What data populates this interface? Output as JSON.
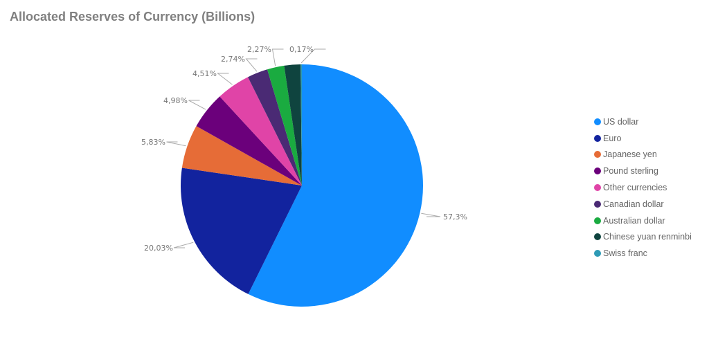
{
  "title": "Allocated Reserves of Currency (Billions)",
  "chart_data": {
    "type": "pie",
    "title": "Allocated Reserves of Currency (Billions)",
    "legend_position": "right",
    "note": "Eight percentage labels are visible for nine slices. Values are assigned by legend order; Chinese yuan renminbi has no visible label.",
    "slices": [
      {
        "label": "US dollar",
        "value": 57.3,
        "display": "57,3%",
        "color": "#118dff"
      },
      {
        "label": "Euro",
        "value": 20.03,
        "display": "20,03%",
        "color": "#12239e"
      },
      {
        "label": "Japanese yen",
        "value": 5.83,
        "display": "5,83%",
        "color": "#e66c37"
      },
      {
        "label": "Pound sterling",
        "value": 4.98,
        "display": "4,98%",
        "color": "#6b007b"
      },
      {
        "label": "Other currencies",
        "value": 4.51,
        "display": "4,51%",
        "color": "#e044a7"
      },
      {
        "label": "Canadian dollar",
        "value": 2.74,
        "display": "2,74%",
        "color": "#4a2a74"
      },
      {
        "label": "Australian dollar",
        "value": 2.27,
        "display": "2,27%",
        "color": "#1aab40"
      },
      {
        "label": "Chinese yuan renminbi",
        "value": null,
        "display": null,
        "color": "#0f443f"
      },
      {
        "label": "Swiss franc",
        "value": 0.17,
        "display": "0,17%",
        "color": "#2e9ab5"
      }
    ]
  },
  "legend": [
    {
      "label": "US dollar",
      "color": "#118dff"
    },
    {
      "label": "Euro",
      "color": "#12239e"
    },
    {
      "label": "Japanese yen",
      "color": "#e66c37"
    },
    {
      "label": "Pound sterling",
      "color": "#6b007b"
    },
    {
      "label": "Other currencies",
      "color": "#e044a7"
    },
    {
      "label": "Canadian dollar",
      "color": "#4a2a74"
    },
    {
      "label": "Australian dollar",
      "color": "#1aab40"
    },
    {
      "label": "Chinese yuan renminbi",
      "color": "#0f443f"
    },
    {
      "label": "Swiss franc",
      "color": "#2e9ab5"
    }
  ]
}
